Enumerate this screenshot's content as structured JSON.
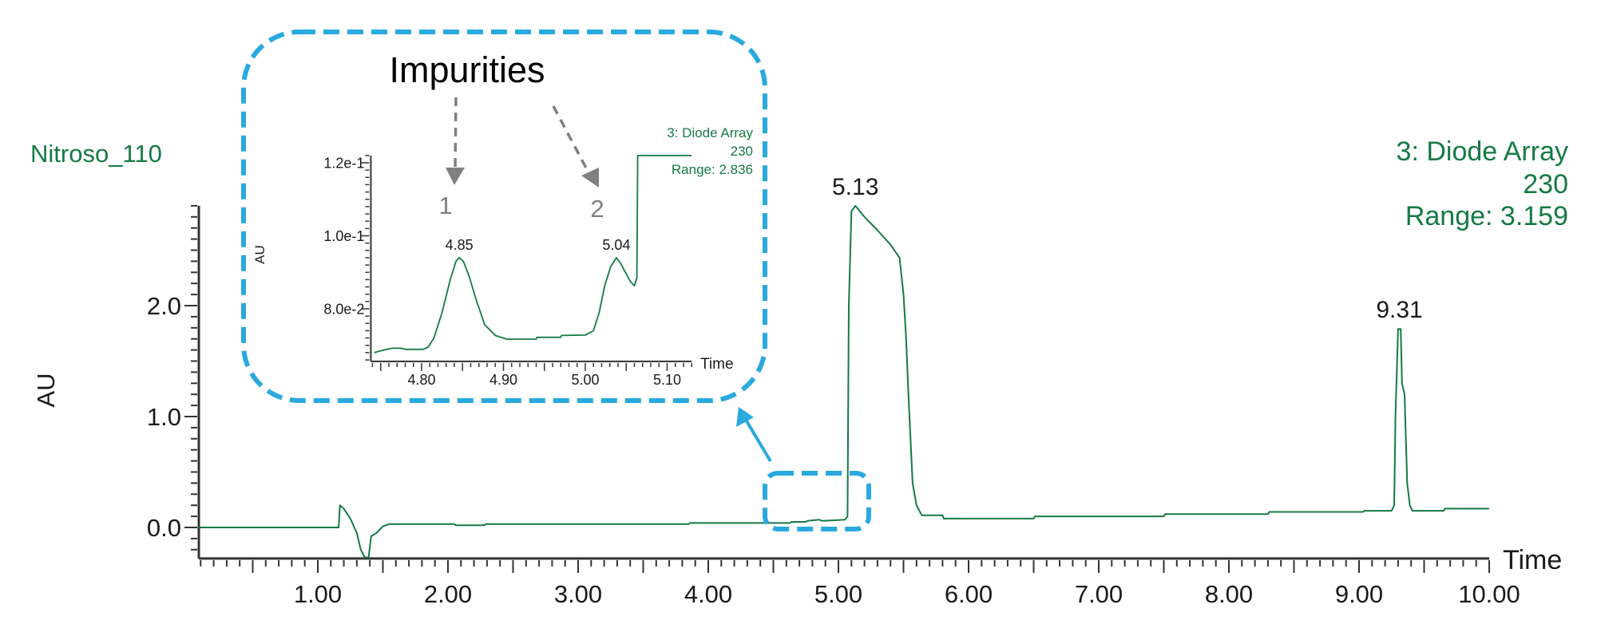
{
  "colors": {
    "trace": "#157a45",
    "callout": "#29a9df",
    "annotation": "#808080",
    "text": "#1a1a1a"
  },
  "annotations": {
    "impurities_label": "Impurities",
    "impurity_1": "1",
    "impurity_2": "2"
  },
  "chart_data": [
    {
      "type": "line",
      "sample_label": "Nitroso_110",
      "detector_lines": [
        "3: Diode Array",
        "230",
        "Range: 3.159"
      ],
      "xlabel": "Time",
      "ylabel": "AU",
      "xlim": [
        0.086,
        10.0
      ],
      "ylim": [
        -0.28,
        2.9
      ],
      "x_ticks": [
        1.0,
        2.0,
        3.0,
        4.0,
        5.0,
        6.0,
        7.0,
        8.0,
        9.0,
        10.0
      ],
      "x_tick_labels": [
        "1.00",
        "2.00",
        "3.00",
        "4.00",
        "5.00",
        "6.00",
        "7.00",
        "8.00",
        "9.00",
        "10.00"
      ],
      "y_ticks": [
        0.0,
        1.0,
        2.0
      ],
      "y_tick_labels": [
        "0.0",
        "1.0",
        "2.0"
      ],
      "grid": false,
      "peak_labels": [
        {
          "text": "5.13",
          "x": 5.13,
          "y": 2.9
        },
        {
          "text": "9.31",
          "x": 9.31,
          "y": 1.79
        }
      ],
      "series": [
        {
          "points": [
            [
              0.086,
              0
            ],
            [
              1.16,
              0
            ],
            [
              1.17,
              0.2
            ],
            [
              1.2,
              0.17
            ],
            [
              1.25,
              0.08
            ],
            [
              1.3,
              -0.05
            ],
            [
              1.33,
              -0.2
            ],
            [
              1.36,
              -0.27
            ],
            [
              1.39,
              -0.27
            ],
            [
              1.41,
              -0.08
            ],
            [
              1.45,
              -0.05
            ],
            [
              1.5,
              0.01
            ],
            [
              1.55,
              0.03
            ],
            [
              2.05,
              0.03
            ],
            [
              2.06,
              0.02
            ],
            [
              2.28,
              0.02
            ],
            [
              2.29,
              0.03
            ],
            [
              3.85,
              0.03
            ],
            [
              3.86,
              0.04
            ],
            [
              4.63,
              0.04
            ],
            [
              4.64,
              0.05
            ],
            [
              4.75,
              0.05
            ],
            [
              4.76,
              0.06
            ],
            [
              4.85,
              0.07
            ],
            [
              4.88,
              0.06
            ],
            [
              5.05,
              0.07
            ],
            [
              5.07,
              0.1
            ],
            [
              5.08,
              2.0
            ],
            [
              5.1,
              2.85
            ],
            [
              5.13,
              2.9
            ],
            [
              5.2,
              2.8
            ],
            [
              5.3,
              2.68
            ],
            [
              5.4,
              2.55
            ],
            [
              5.47,
              2.43
            ],
            [
              5.5,
              2.1
            ],
            [
              5.52,
              1.7
            ],
            [
              5.54,
              1.15
            ],
            [
              5.57,
              0.4
            ],
            [
              5.6,
              0.2
            ],
            [
              5.64,
              0.11
            ],
            [
              5.8,
              0.11
            ],
            [
              5.81,
              0.08
            ],
            [
              6.5,
              0.08
            ],
            [
              6.51,
              0.1
            ],
            [
              7.5,
              0.1
            ],
            [
              7.51,
              0.12
            ],
            [
              8.3,
              0.12
            ],
            [
              8.31,
              0.14
            ],
            [
              9.03,
              0.14
            ],
            [
              9.04,
              0.15
            ],
            [
              9.25,
              0.15
            ],
            [
              9.27,
              0.2
            ],
            [
              9.28,
              1.0
            ],
            [
              9.3,
              1.79
            ],
            [
              9.32,
              1.79
            ],
            [
              9.33,
              1.3
            ],
            [
              9.35,
              1.2
            ],
            [
              9.37,
              0.4
            ],
            [
              9.39,
              0.2
            ],
            [
              9.41,
              0.15
            ],
            [
              9.65,
              0.15
            ],
            [
              9.66,
              0.17
            ],
            [
              10.0,
              0.17
            ]
          ]
        }
      ]
    },
    {
      "type": "line",
      "detector_lines": [
        "3: Diode Array",
        "230",
        "Range: 2.836"
      ],
      "xlabel": "Time",
      "ylabel": "AU",
      "xlim": [
        4.738,
        5.13
      ],
      "ylim": [
        0.0656,
        0.122
      ],
      "x_ticks": [
        4.8,
        4.9,
        5.0,
        5.1
      ],
      "x_tick_labels": [
        "4.80",
        "4.90",
        "5.00",
        "5.10"
      ],
      "y_ticks": [
        0.08,
        0.1,
        0.12
      ],
      "y_tick_labels": [
        "8.0e-2",
        "1.0e-1",
        "1.2e-1"
      ],
      "grid": false,
      "peak_labels": [
        {
          "text": "4.85",
          "x": 4.846,
          "y": 0.094
        },
        {
          "text": "5.04",
          "x": 5.038,
          "y": 0.094
        }
      ],
      "series": [
        {
          "points": [
            [
              4.742,
              0.068
            ],
            [
              4.75,
              0.0685
            ],
            [
              4.76,
              0.069
            ],
            [
              4.765,
              0.0692
            ],
            [
              4.775,
              0.0692
            ],
            [
              4.78,
              0.0689
            ],
            [
              4.802,
              0.0689
            ],
            [
              4.808,
              0.0695
            ],
            [
              4.815,
              0.072
            ],
            [
              4.825,
              0.079
            ],
            [
              4.835,
              0.088
            ],
            [
              4.842,
              0.093
            ],
            [
              4.846,
              0.094
            ],
            [
              4.851,
              0.093
            ],
            [
              4.858,
              0.089
            ],
            [
              4.866,
              0.083
            ],
            [
              4.877,
              0.0757
            ],
            [
              4.89,
              0.0727
            ],
            [
              4.904,
              0.0717
            ],
            [
              4.94,
              0.0717
            ],
            [
              4.941,
              0.0722
            ],
            [
              4.97,
              0.0722
            ],
            [
              4.971,
              0.0727
            ],
            [
              5.0,
              0.0728
            ],
            [
              5.01,
              0.074
            ],
            [
              5.017,
              0.079
            ],
            [
              5.024,
              0.0866
            ],
            [
              5.031,
              0.0915
            ],
            [
              5.038,
              0.094
            ],
            [
              5.043,
              0.0925
            ],
            [
              5.049,
              0.09
            ],
            [
              5.055,
              0.0875
            ],
            [
              5.06,
              0.0863
            ],
            [
              5.063,
              0.0885
            ],
            [
              5.064,
              0.122
            ],
            [
              5.13,
              0.122
            ]
          ]
        }
      ]
    }
  ]
}
